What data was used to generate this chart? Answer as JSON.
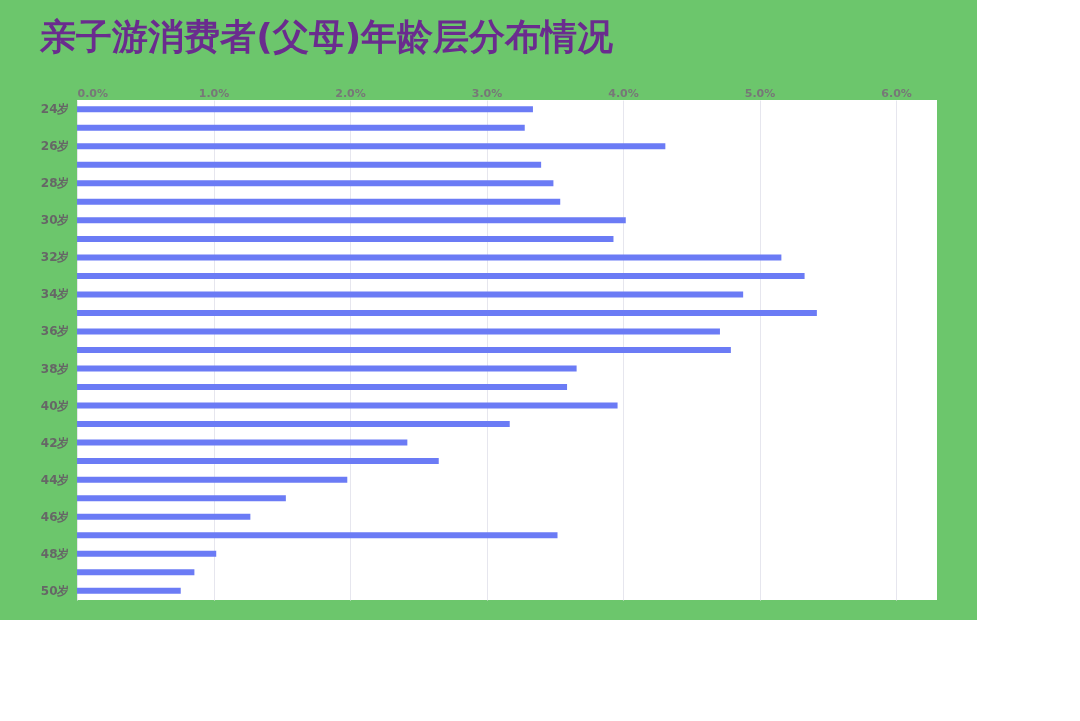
{
  "chart_data": {
    "type": "bar",
    "orientation": "horizontal",
    "title": "亲子游消费者(父母)年龄层分布情况",
    "categories": [
      "24岁",
      null,
      "26岁",
      null,
      "28岁",
      null,
      "30岁",
      null,
      "32岁",
      null,
      "34岁",
      null,
      "36岁",
      null,
      "38岁",
      null,
      "40岁",
      null,
      "42岁",
      null,
      "44岁",
      null,
      "46岁",
      null,
      "48岁",
      null,
      "50岁"
    ],
    "values": [
      3.34,
      3.28,
      4.31,
      3.4,
      3.49,
      3.54,
      4.02,
      3.93,
      5.16,
      5.33,
      4.88,
      5.42,
      4.71,
      4.79,
      3.66,
      3.59,
      3.96,
      3.17,
      2.42,
      2.65,
      1.98,
      1.53,
      1.27,
      3.52,
      1.02,
      0.86,
      0.76
    ],
    "color": "#6b7bf5",
    "xlim": [
      0,
      6.3
    ],
    "xticks": [
      {
        "value": 0,
        "label": "0.0%"
      },
      {
        "value": 1,
        "label": "1.0%"
      },
      {
        "value": 2,
        "label": "2.0%"
      },
      {
        "value": 3,
        "label": "3.0%"
      },
      {
        "value": 4,
        "label": "4.0%"
      },
      {
        "value": 5,
        "label": "5.0%"
      },
      {
        "value": 6,
        "label": "6.0%"
      }
    ],
    "grid": "x"
  }
}
